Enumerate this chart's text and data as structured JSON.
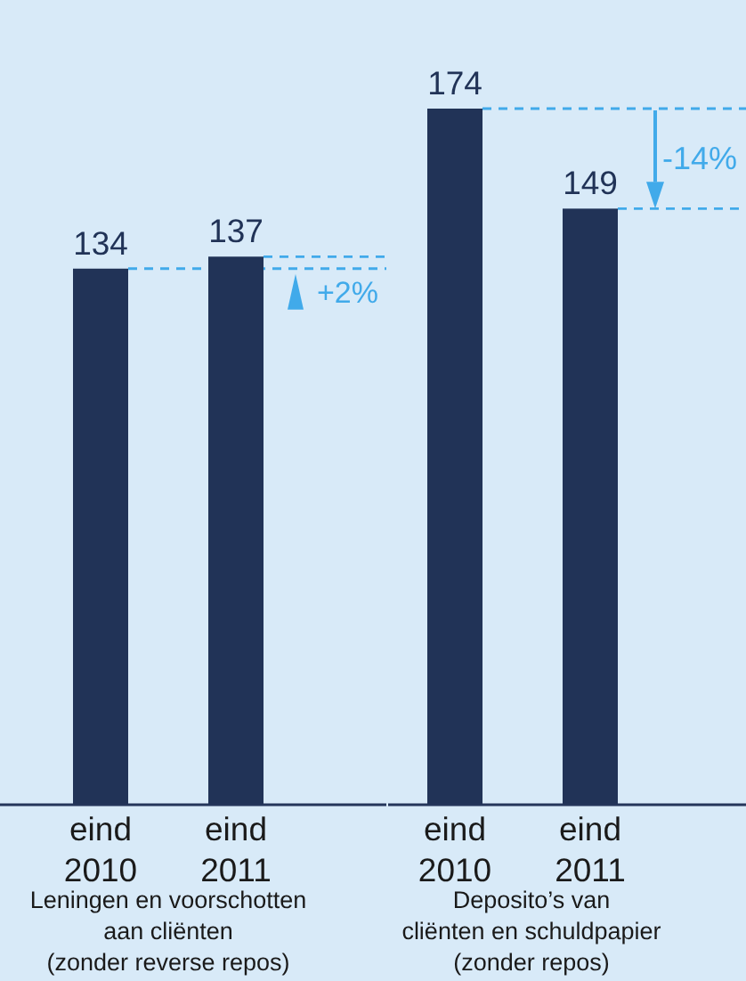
{
  "chart_data": [
    {
      "type": "bar",
      "categories": [
        "eind\n2010",
        "eind\n2011"
      ],
      "values": [
        134,
        137
      ],
      "color": "#213357",
      "data_labels": true,
      "xlabel": "Leningen en voorschotten\naan cliënten\n(zonder reverse repos)",
      "ref_lines": [
        {
          "axis": "y",
          "value": 134,
          "color": "#41aaea",
          "line_style": "dashed"
        },
        {
          "axis": "y",
          "value": 137,
          "color": "#41aaea",
          "line_style": "dashed"
        }
      ],
      "annotations": [
        "+2%"
      ]
    },
    {
      "type": "bar",
      "categories": [
        "eind\n2010",
        "eind\n2011"
      ],
      "values": [
        174,
        149
      ],
      "color": "#213357",
      "data_labels": true,
      "xlabel": "Deposito’s van\ncliënten en schuldpapier\n(zonder repos)",
      "ref_lines": [
        {
          "axis": "y",
          "value": 174,
          "color": "#41aaea",
          "line_style": "dashed"
        },
        {
          "axis": "y",
          "value": 149,
          "color": "#41aaea",
          "line_style": "dashed"
        }
      ],
      "annotations": [
        "-14%"
      ]
    }
  ]
}
